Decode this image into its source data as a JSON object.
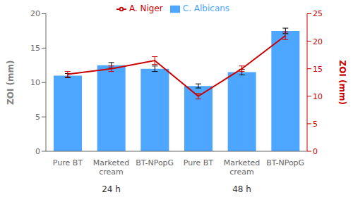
{
  "chart_data": {
    "type": "bar",
    "categories": [
      "Pure BT",
      "Marketed\ncream",
      "BT-NPopG",
      "Pure BT",
      "Marketed\ncream",
      "BT-NPopG"
    ],
    "series": [
      {
        "name": "C. Albicans",
        "type": "bar",
        "color": "#4da6ff",
        "values": [
          11.0,
          12.5,
          12.0,
          9.5,
          11.5,
          17.5
        ],
        "errors": [
          0.3,
          0.4,
          0.4,
          0.3,
          0.4,
          0.4
        ]
      },
      {
        "name": "A. Niger",
        "type": "line",
        "color": "#cc0000",
        "axis": "y2",
        "values": [
          14.0,
          15.0,
          16.5,
          10.0,
          15.0,
          21.0
        ],
        "errors": [
          0.5,
          0.5,
          0.7,
          0.5,
          0.5,
          0.7
        ]
      }
    ],
    "ylabel": "ZOI (mm)",
    "y2label": "ZOI (mm)",
    "ylim": [
      0,
      20
    ],
    "yticks": [
      0,
      5,
      10,
      15,
      20
    ],
    "y2lim": [
      0,
      25
    ],
    "y2ticks": [
      0,
      5,
      10,
      15,
      20,
      25
    ],
    "annotations": [
      "24 h",
      "48 h"
    ],
    "legend": "top",
    "grid": false
  }
}
